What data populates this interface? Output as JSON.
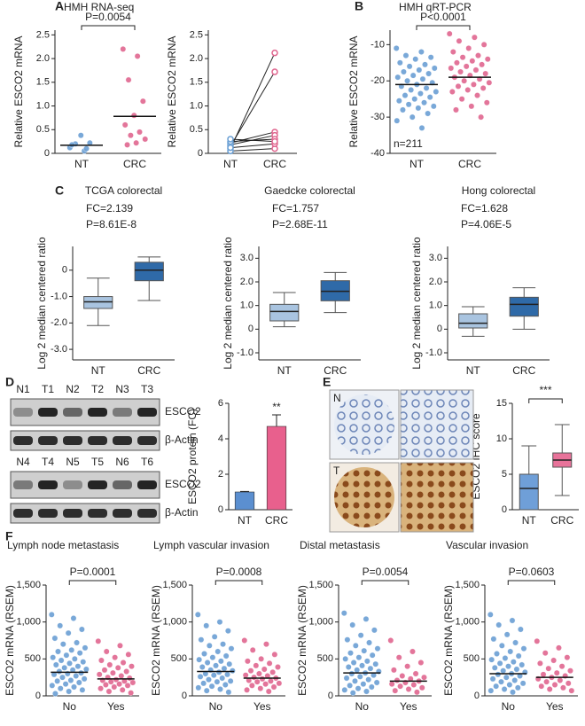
{
  "chart_data": [
    {
      "type": "strip",
      "panel": "A",
      "title": "HMH RNA-seq",
      "ylabel": "Relative ESCO2 mRNA",
      "categories": [
        "NT",
        "CRC"
      ],
      "groups": [
        {
          "color": "#6a9fd4",
          "values": [
            0.12,
            0.05,
            0.2,
            0.22,
            0.38,
            0.18,
            0.1
          ]
        },
        {
          "color": "#e0668f",
          "values": [
            2.2,
            2.05,
            1.55,
            1.1,
            0.8,
            0.6,
            0.45,
            0.38,
            0.3,
            0.22,
            0.18
          ]
        }
      ],
      "means": [
        0.17,
        0.78
      ],
      "p": "P=0.0054",
      "ylim": [
        0,
        2.6
      ],
      "yticks": [
        0,
        {
          "value": 0.5,
          "label": "0.5"
        },
        {
          "value": 1,
          "label": "1.0"
        },
        {
          "value": 1.5,
          "label": "1.5"
        },
        {
          "value": 2,
          "label": "2.0"
        },
        {
          "value": 2.5,
          "label": "2.5"
        }
      ]
    },
    {
      "type": "paired",
      "ylabel": "Relative ESCO2 mRNA",
      "categories": [
        "NT",
        "CRC"
      ],
      "pairs": [
        [
          0.1,
          2.12
        ],
        [
          0.15,
          1.72
        ],
        [
          0.22,
          0.45
        ],
        [
          0.18,
          0.38
        ],
        [
          0.05,
          0.1
        ],
        [
          0.25,
          0.3
        ],
        [
          0.12,
          0.2
        ],
        [
          0.3,
          0.25
        ]
      ],
      "ylim": [
        0,
        2.6
      ],
      "yticks": [
        0,
        {
          "value": 0.5,
          "label": "0.5"
        },
        {
          "value": 1,
          "label": "1.0"
        },
        {
          "value": 1.5,
          "label": "1.5"
        },
        {
          "value": 2,
          "label": "2.0"
        },
        {
          "value": 2.5,
          "label": "2.5"
        }
      ]
    },
    {
      "type": "strip",
      "panel": "B",
      "title": "HMH qRT-PCR",
      "ylabel": "Relative ESCO2 mRNA",
      "categories": [
        "NT",
        "CRC"
      ],
      "groups": [
        {
          "color": "#6a9fd4",
          "values": [
            -11,
            -12,
            -13,
            -13.5,
            -14,
            -15,
            -15.5,
            -16,
            -16.5,
            -17,
            -17.5,
            -18,
            -18.5,
            -19,
            -19.5,
            -20,
            -20.5,
            -21,
            -21.5,
            -22,
            -22.5,
            -23,
            -23.5,
            -24,
            -24.5,
            -25,
            -25.5,
            -26,
            -26.5,
            -27,
            -27.5,
            -28,
            -29,
            -30,
            -31,
            -33
          ]
        },
        {
          "color": "#e0668f",
          "values": [
            -7,
            -8,
            -9,
            -10,
            -11,
            -12,
            -13,
            -13.5,
            -14,
            -14.5,
            -15,
            -15.5,
            -16,
            -16.5,
            -17,
            -17.5,
            -18,
            -18.5,
            -19,
            -19.5,
            -20,
            -20.5,
            -21,
            -21.5,
            -22,
            -22.5,
            -23,
            -24,
            -25,
            -26,
            -27,
            -28,
            -30
          ]
        }
      ],
      "means": [
        -21,
        -19
      ],
      "p": "P<0.0001",
      "note": "n=211",
      "ylim": [
        -40,
        -6
      ],
      "yticks": [
        -40,
        -30,
        -20,
        -10
      ]
    },
    {
      "type": "box",
      "panel": "C",
      "title": "TCGA colorectal",
      "fc": "FC=2.139",
      "p": "P=8.61E-8",
      "ylabel": "Log 2 median centered ratio",
      "categories": [
        "NT",
        "CRC"
      ],
      "boxes": [
        {
          "color": "#a9c4e0",
          "min": -2.1,
          "q1": -1.45,
          "median": -1.2,
          "q3": -1.0,
          "max": -0.3
        },
        {
          "color": "#2f6aa8",
          "min": -1.15,
          "q1": -0.4,
          "median": 0,
          "q3": 0.3,
          "max": 0.5
        }
      ],
      "ylim": [
        -3.4,
        0.9
      ],
      "yticks": [
        {
          "value": -3,
          "label": "-3.0"
        },
        {
          "value": -2,
          "label": "-2.0"
        },
        {
          "value": -1,
          "label": "-1.0"
        },
        0
      ]
    },
    {
      "type": "box",
      "title": "Gaedcke colorectal",
      "fc": "FC=1.757",
      "p": "P=2.68E-11",
      "ylabel": "Log 2 median centered ratio",
      "categories": [
        "NT",
        "CRC"
      ],
      "boxes": [
        {
          "color": "#a9c4e0",
          "min": 0.1,
          "q1": 0.35,
          "median": 0.75,
          "q3": 1.05,
          "max": 1.55
        },
        {
          "color": "#2f6aa8",
          "min": 0.7,
          "q1": 1.2,
          "median": 1.6,
          "q3": 2.05,
          "max": 2.4
        }
      ],
      "ylim": [
        -1.3,
        3.5
      ],
      "yticks": [
        {
          "value": -1,
          "label": "-1.0"
        },
        0,
        {
          "value": 1,
          "label": "1.0"
        },
        {
          "value": 2,
          "label": "2.0"
        },
        {
          "value": 3,
          "label": "3.0"
        }
      ]
    },
    {
      "type": "box",
      "title": "Hong colorectal",
      "fc": "FC=1.628",
      "p": "P=4.06E-5",
      "ylabel": "Log 2 median centered ratio",
      "categories": [
        "NT",
        "CRC"
      ],
      "boxes": [
        {
          "color": "#a9c4e0",
          "min": -0.3,
          "q1": 0.05,
          "median": 0.25,
          "q3": 0.65,
          "max": 0.95
        },
        {
          "color": "#2f6aa8",
          "min": 0,
          "q1": 0.55,
          "median": 1.05,
          "q3": 1.35,
          "max": 1.75
        }
      ],
      "ylim": [
        -1.3,
        3.5
      ],
      "yticks": [
        {
          "value": -1,
          "label": "-1.0"
        },
        0,
        {
          "value": 1,
          "label": "1.0"
        },
        {
          "value": 2,
          "label": "2.0"
        },
        {
          "value": 3,
          "label": "3.0"
        }
      ]
    },
    {
      "type": "bar",
      "ylabel": "ESCO2 protein (FC)",
      "categories": [
        "NT",
        "CRC"
      ],
      "values": [
        1,
        4.7
      ],
      "errors": [
        0.03,
        0.65
      ],
      "colors": [
        "#5b8fd0",
        "#e8608d"
      ],
      "sig": "**",
      "ylim": [
        0,
        6
      ],
      "yticks": [
        0,
        2,
        4,
        6
      ]
    },
    {
      "type": "box",
      "ylabel": "ESCO2 IHC score",
      "categories": [
        "NT",
        "CRC"
      ],
      "boxes": [
        {
          "color": "#6f9fd8",
          "min": 0,
          "q1": 0,
          "median": 3,
          "q3": 5,
          "max": 9
        },
        {
          "color": "#e8739a",
          "min": 2,
          "q1": 6,
          "median": 7,
          "q3": 8,
          "max": 12
        }
      ],
      "sig": "***",
      "ylim": [
        0,
        15
      ],
      "yticks": [
        0,
        5,
        10,
        15
      ]
    },
    {
      "type": "strip",
      "panel": "F",
      "title": "Lymph node metastasis",
      "ylabel": "ESCO2 mRNA (RSEM)",
      "categories": [
        "No",
        "Yes"
      ],
      "groups": [
        {
          "color": "#6a9fd4",
          "values": [
            1100,
            1050,
            950,
            900,
            850,
            780,
            720,
            700,
            650,
            620,
            600,
            580,
            550,
            520,
            500,
            480,
            460,
            440,
            420,
            400,
            380,
            360,
            350,
            330,
            310,
            300,
            290,
            270,
            250,
            230,
            210,
            200,
            180,
            160,
            140,
            120,
            100,
            80,
            60,
            30
          ]
        },
        {
          "color": "#e0668f",
          "values": [
            740,
            680,
            600,
            560,
            520,
            480,
            450,
            420,
            400,
            380,
            350,
            330,
            310,
            290,
            270,
            250,
            240,
            220,
            210,
            200,
            190,
            180,
            160,
            150,
            140,
            120,
            100,
            80,
            60,
            40
          ]
        }
      ],
      "means": [
        320,
        230
      ],
      "p": "P=0.0001",
      "ylim": [
        0,
        1500
      ],
      "yticks": [
        0,
        500,
        {
          "value": 1000,
          "label": "1,000"
        },
        {
          "value": 1500,
          "label": "1,500"
        }
      ]
    },
    {
      "type": "strip",
      "title": "Lymph vascular invasion",
      "ylabel": "ESCO2 mRNA (RSEM)",
      "categories": [
        "No",
        "Yes"
      ],
      "groups": [
        {
          "color": "#6a9fd4",
          "values": [
            1100,
            1000,
            950,
            880,
            800,
            760,
            700,
            680,
            640,
            600,
            570,
            540,
            520,
            490,
            470,
            450,
            430,
            410,
            390,
            370,
            350,
            340,
            320,
            300,
            290,
            280,
            260,
            240,
            220,
            200,
            190,
            170,
            150,
            130,
            110,
            90,
            70,
            50
          ]
        },
        {
          "color": "#e0668f",
          "values": [
            750,
            700,
            620,
            560,
            500,
            470,
            440,
            410,
            390,
            360,
            340,
            320,
            300,
            280,
            270,
            250,
            240,
            230,
            210,
            200,
            190,
            170,
            160,
            140,
            120,
            100,
            80,
            60
          ]
        }
      ],
      "means": [
        330,
        240
      ],
      "p": "P=0.0008",
      "ylim": [
        0,
        1500
      ],
      "yticks": [
        0,
        500,
        {
          "value": 1000,
          "label": "1,000"
        },
        {
          "value": 1500,
          "label": "1,500"
        }
      ]
    },
    {
      "type": "strip",
      "title": "Distal metastasis",
      "ylabel": "ESCO2 mRNA (RSEM)",
      "categories": [
        "No",
        "Yes"
      ],
      "groups": [
        {
          "color": "#6a9fd4",
          "values": [
            1120,
            1040,
            960,
            890,
            820,
            760,
            720,
            680,
            640,
            610,
            580,
            550,
            520,
            500,
            470,
            450,
            430,
            410,
            390,
            370,
            350,
            330,
            310,
            300,
            280,
            260,
            240,
            220,
            200,
            180,
            160,
            140,
            120,
            100,
            80,
            60,
            40
          ]
        },
        {
          "color": "#e0668f",
          "values": [
            750,
            600,
            520,
            450,
            400,
            350,
            300,
            270,
            250,
            230,
            210,
            200,
            180,
            160,
            150,
            130,
            110,
            90,
            70,
            50
          ]
        }
      ],
      "means": [
        310,
        200
      ],
      "p": "P=0.0054",
      "ylim": [
        0,
        1500
      ],
      "yticks": [
        0,
        500,
        {
          "value": 1000,
          "label": "1,000"
        },
        {
          "value": 1500,
          "label": "1,500"
        }
      ]
    },
    {
      "type": "strip",
      "title": "Vascular invasion",
      "ylabel": "ESCO2 mRNA (RSEM)",
      "categories": [
        "No",
        "Yes"
      ],
      "groups": [
        {
          "color": "#6a9fd4",
          "values": [
            1100,
            1020,
            960,
            900,
            830,
            770,
            720,
            680,
            640,
            600,
            570,
            540,
            510,
            490,
            460,
            440,
            420,
            400,
            380,
            360,
            340,
            320,
            300,
            290,
            270,
            250,
            230,
            210,
            190,
            170,
            150,
            130,
            110,
            90,
            70,
            50
          ]
        },
        {
          "color": "#e0668f",
          "values": [
            740,
            650,
            580,
            520,
            480,
            440,
            400,
            370,
            340,
            310,
            290,
            270,
            250,
            230,
            210,
            190,
            170,
            150,
            130,
            110,
            90,
            70
          ]
        }
      ],
      "means": [
        300,
        250
      ],
      "p": "P=0.0603",
      "ylim": [
        0,
        1500
      ],
      "yticks": [
        0,
        500,
        {
          "value": 1000,
          "label": "1,000"
        },
        {
          "value": 1500,
          "label": "1,500"
        }
      ]
    }
  ],
  "blots": {
    "panel": "D",
    "rows": [
      {
        "lanes": [
          "N1",
          "T1",
          "N2",
          "T2",
          "N3",
          "T3"
        ],
        "bands": [
          "ESCO2",
          "β-Actin"
        ]
      },
      {
        "lanes": [
          "N4",
          "T4",
          "N5",
          "T5",
          "N6",
          "T6"
        ],
        "bands": [
          "ESCO2",
          "β-Actin"
        ]
      }
    ]
  },
  "ihc": {
    "panel": "E",
    "rows": [
      "N",
      "T"
    ]
  }
}
